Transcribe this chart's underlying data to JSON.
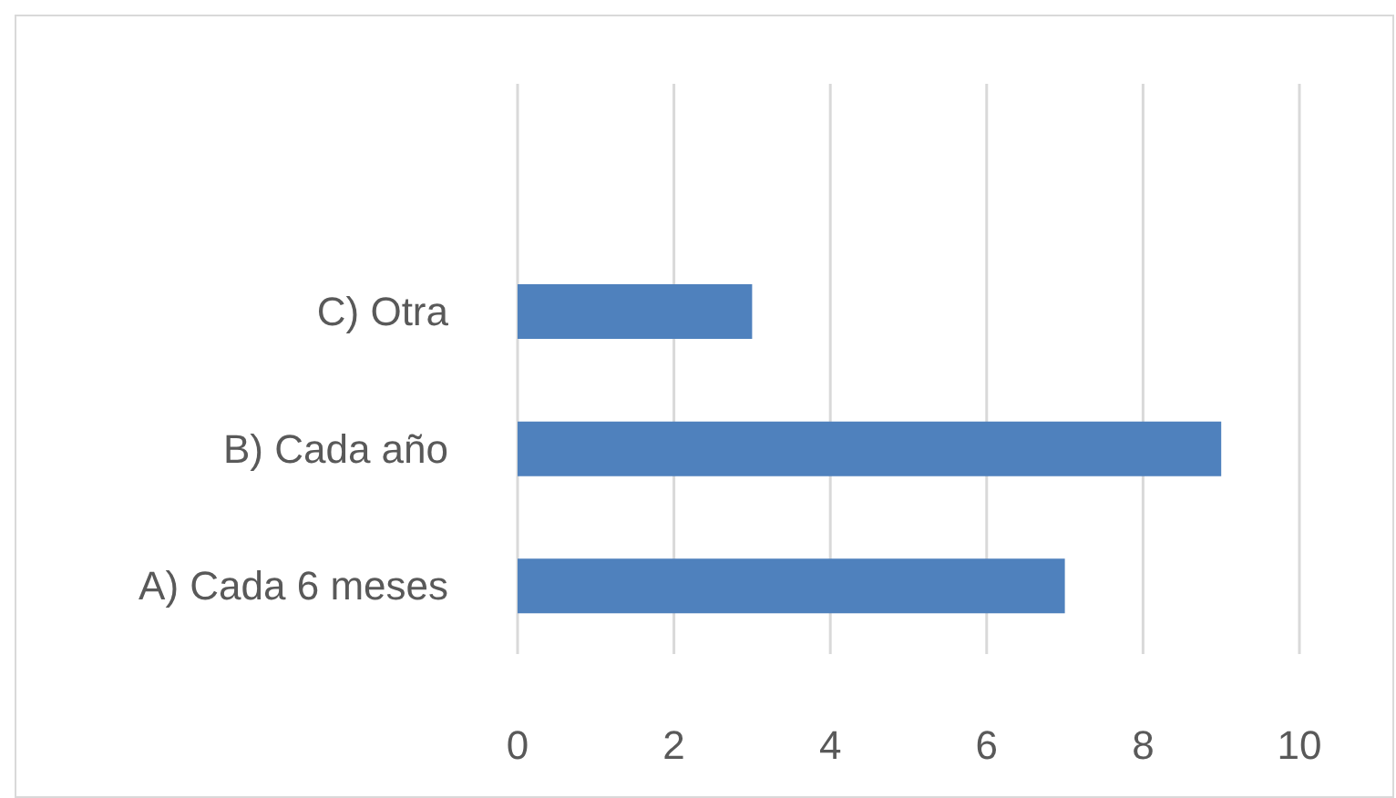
{
  "chart_data": {
    "type": "bar",
    "orientation": "horizontal",
    "categories": [
      "C) Otra",
      "B) Cada año",
      "A) Cada 6 meses"
    ],
    "values": [
      3,
      9,
      7
    ],
    "color": "#4f81bd",
    "xlim": [
      0,
      10
    ],
    "xticks": [
      0,
      2,
      4,
      6,
      8,
      10
    ],
    "grid": "x"
  }
}
